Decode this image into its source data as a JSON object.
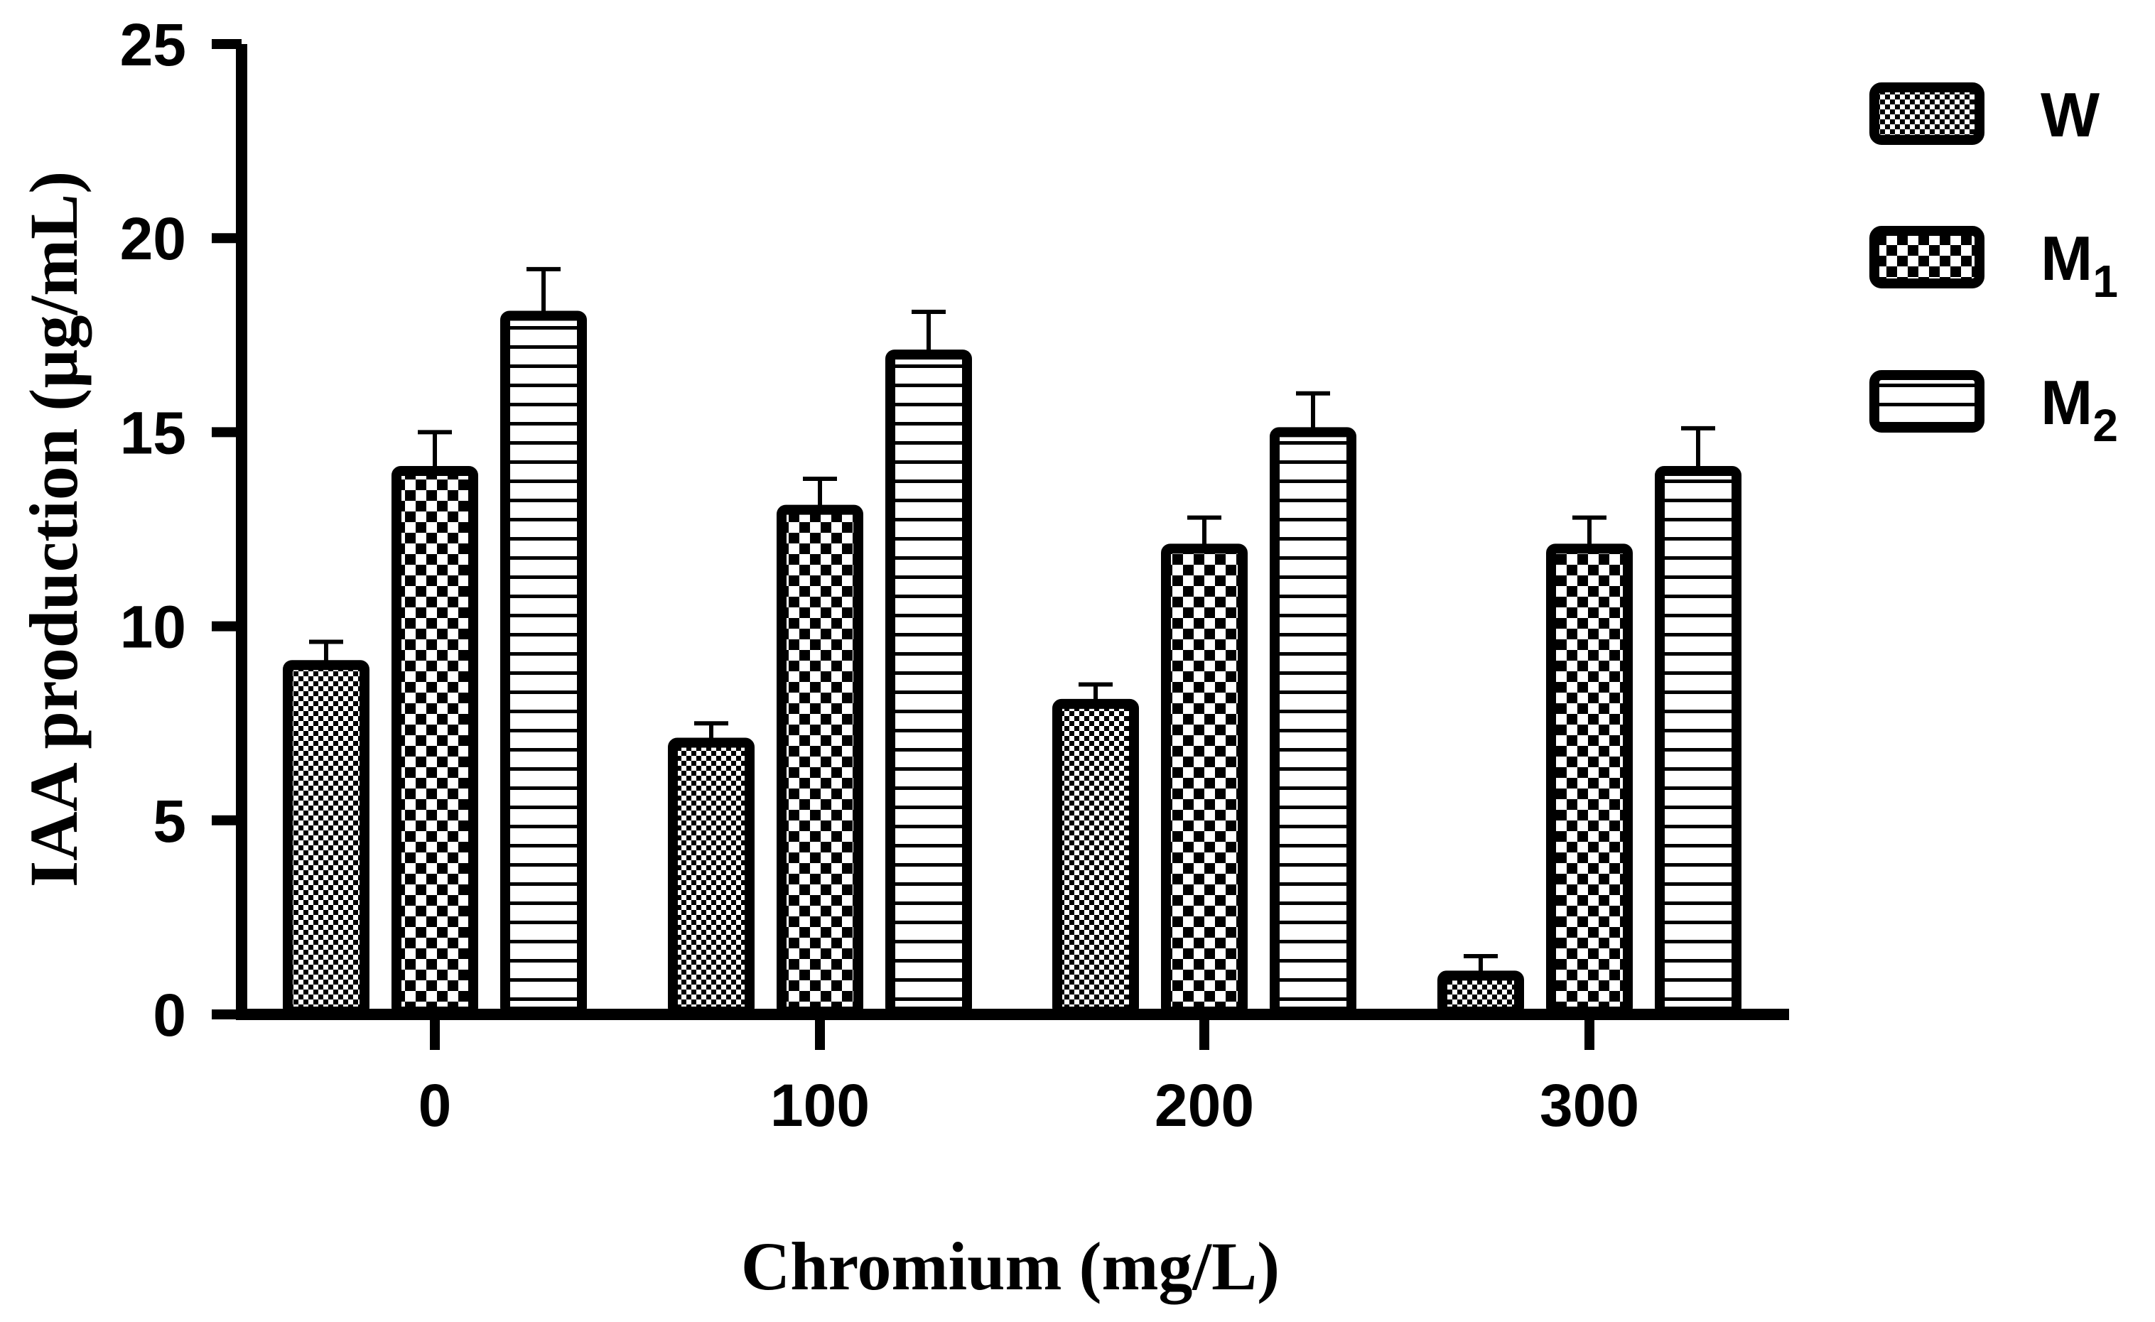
{
  "chart_data": {
    "type": "bar",
    "title": "",
    "xlabel": "Chromium (mg/L)",
    "ylabel": "IAA production (µg/mL)",
    "ylim": [
      0,
      25
    ],
    "yticks": [
      0,
      5,
      10,
      15,
      20,
      25
    ],
    "categories": [
      "0",
      "100",
      "200",
      "300"
    ],
    "legend_position": "top-right",
    "series": [
      {
        "name": "W",
        "base": "W",
        "sub": "",
        "pattern": "fine-check",
        "values": [
          9,
          7,
          8,
          1
        ],
        "errors": [
          0.6,
          0.5,
          0.5,
          0.5
        ]
      },
      {
        "name": "M1",
        "base": "M",
        "sub": "1",
        "pattern": "coarse-check",
        "values": [
          14,
          13,
          12,
          12
        ],
        "errors": [
          1.0,
          0.8,
          0.8,
          0.8
        ]
      },
      {
        "name": "M2",
        "base": "M",
        "sub": "2",
        "pattern": "h-stripes",
        "values": [
          18,
          17,
          15,
          14
        ],
        "errors": [
          1.2,
          1.1,
          1.0,
          1.1
        ]
      }
    ],
    "colors": {
      "ink": "#000000",
      "fill": "#ffffff"
    }
  }
}
